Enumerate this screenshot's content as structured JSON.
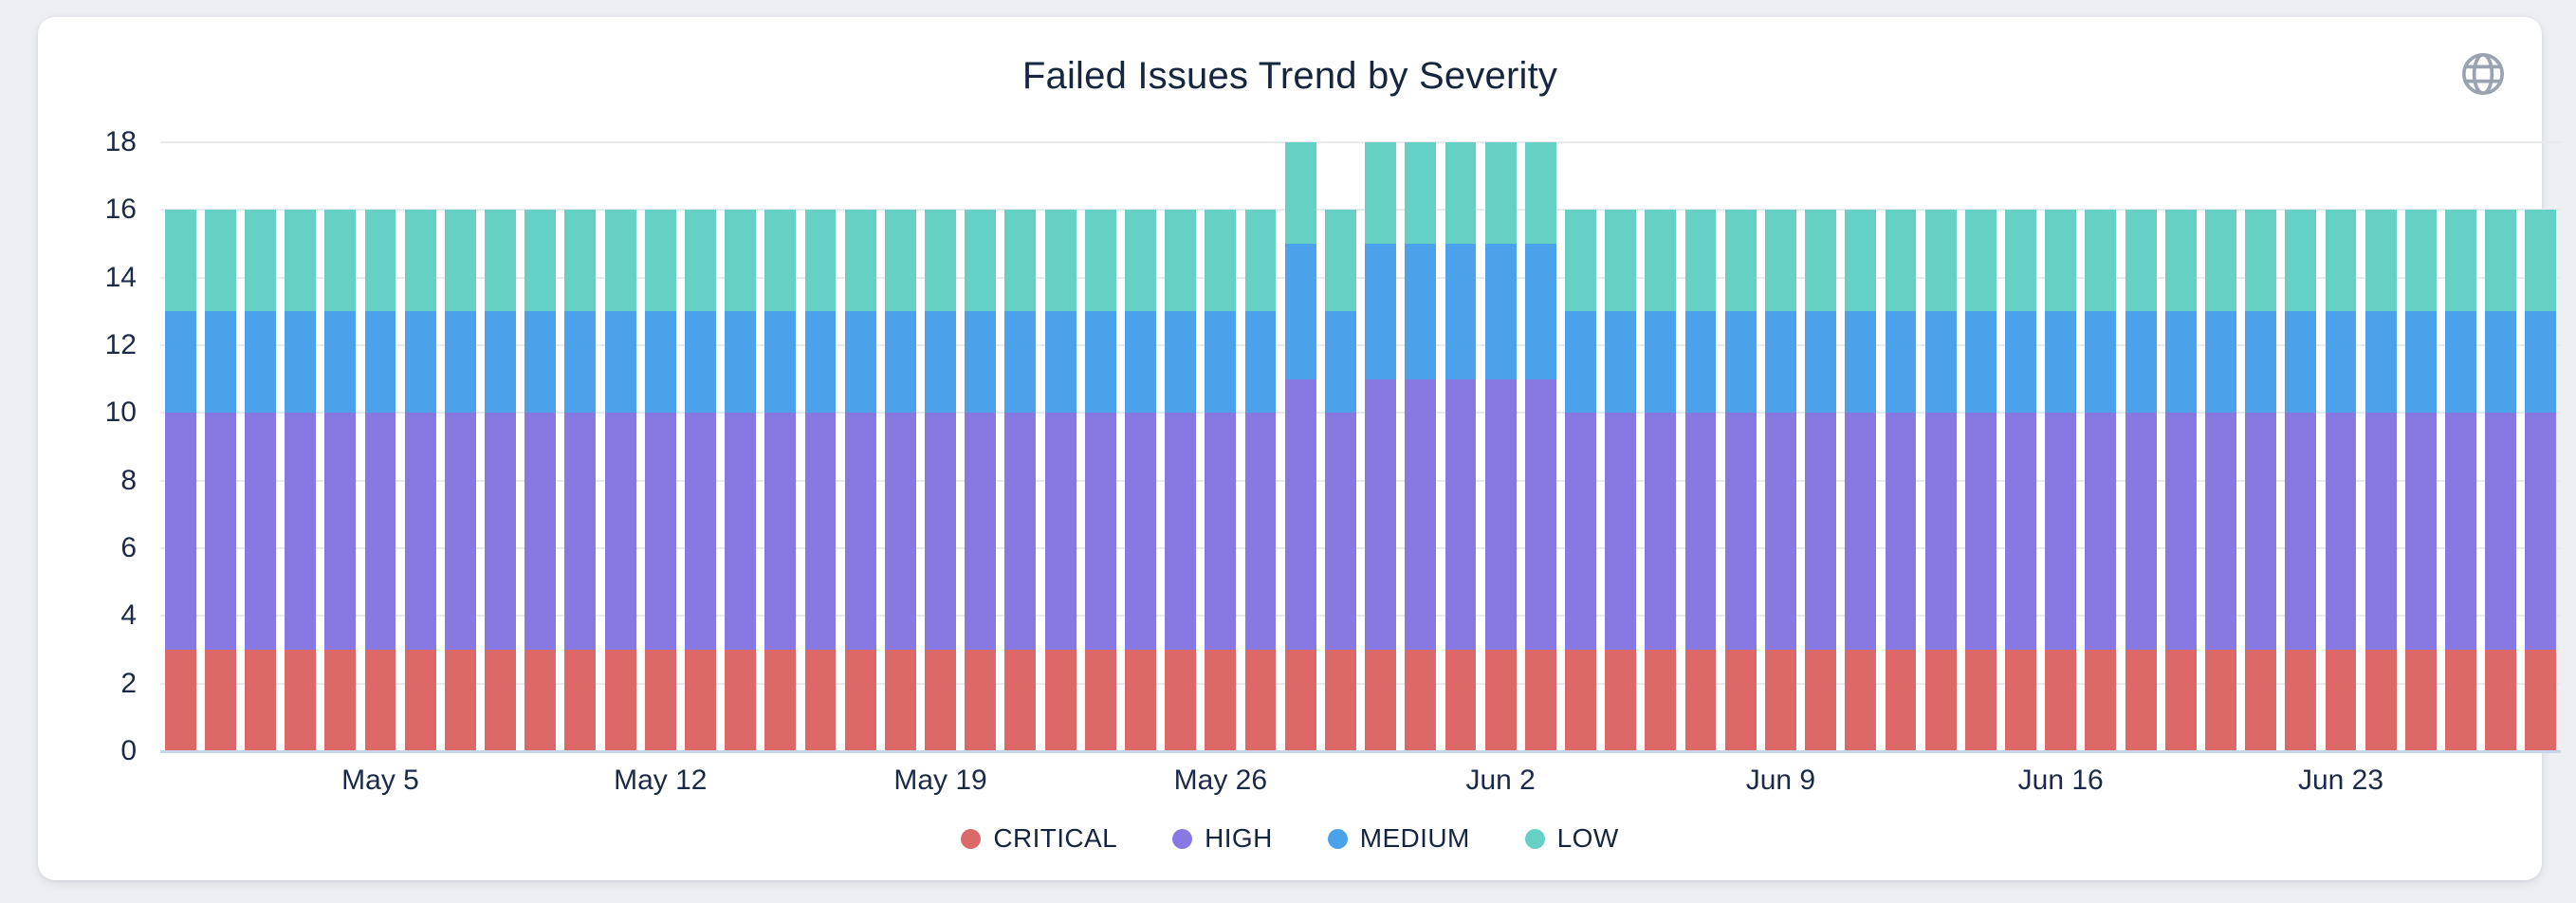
{
  "card": {
    "background": "#FFFFFF"
  },
  "header": {
    "icon": "globe"
  },
  "colors": {
    "page_background": "#EDEFF3",
    "grid_line": "#E9EAEE",
    "axis_line": "#C9D4E8",
    "axis_text": "#1B2A47",
    "title_text": "#17263F",
    "globe_icon": "#9AA3AF"
  },
  "chart_data": {
    "type": "bar",
    "stacked": true,
    "title": "Failed Issues Trend by Severity",
    "xlabel": "",
    "ylabel": "",
    "ylim": [
      0,
      18
    ],
    "y_ticks": [
      0,
      2,
      4,
      6,
      8,
      10,
      12,
      14,
      16,
      18
    ],
    "grid": true,
    "legend_position": "bottom",
    "categories": [
      "Apr 30",
      "May 1",
      "May 2",
      "May 3",
      "May 4",
      "May 5",
      "May 6",
      "May 7",
      "May 8",
      "May 9",
      "May 10",
      "May 11",
      "May 12",
      "May 13",
      "May 14",
      "May 15",
      "May 16",
      "May 17",
      "May 18",
      "May 19",
      "May 20",
      "May 21",
      "May 22",
      "May 23",
      "May 24",
      "May 25",
      "May 26",
      "May 27",
      "May 28",
      "May 29",
      "May 30",
      "May 31",
      "Jun 1",
      "Jun 2",
      "Jun 3",
      "Jun 4",
      "Jun 5",
      "Jun 6",
      "Jun 7",
      "Jun 8",
      "Jun 9",
      "Jun 10",
      "Jun 11",
      "Jun 12",
      "Jun 13",
      "Jun 14",
      "Jun 15",
      "Jun 16",
      "Jun 17",
      "Jun 18",
      "Jun 19",
      "Jun 20",
      "Jun 21",
      "Jun 22",
      "Jun 23",
      "Jun 24",
      "Jun 25",
      "Jun 26",
      "Jun 27",
      "Jun 28"
    ],
    "x_tick_labels": [
      {
        "index": 5,
        "label": "May 5"
      },
      {
        "index": 12,
        "label": "May 12"
      },
      {
        "index": 19,
        "label": "May 19"
      },
      {
        "index": 26,
        "label": "May 26"
      },
      {
        "index": 33,
        "label": "Jun 2"
      },
      {
        "index": 40,
        "label": "Jun 9"
      },
      {
        "index": 47,
        "label": "Jun 16"
      },
      {
        "index": 54,
        "label": "Jun 23"
      }
    ],
    "series": [
      {
        "name": "CRITICAL",
        "color": "#DC6868",
        "values": [
          3,
          3,
          3,
          3,
          3,
          3,
          3,
          3,
          3,
          3,
          3,
          3,
          3,
          3,
          3,
          3,
          3,
          3,
          3,
          3,
          3,
          3,
          3,
          3,
          3,
          3,
          3,
          3,
          3,
          3,
          3,
          3,
          3,
          3,
          3,
          3,
          3,
          3,
          3,
          3,
          3,
          3,
          3,
          3,
          3,
          3,
          3,
          3,
          3,
          3,
          3,
          3,
          3,
          3,
          3,
          3,
          3,
          3,
          3,
          3
        ]
      },
      {
        "name": "HIGH",
        "color": "#8779E1",
        "values": [
          7,
          7,
          7,
          7,
          7,
          7,
          7,
          7,
          7,
          7,
          7,
          7,
          7,
          7,
          7,
          7,
          7,
          7,
          7,
          7,
          7,
          7,
          7,
          7,
          7,
          7,
          7,
          7,
          8,
          7,
          8,
          8,
          8,
          8,
          8,
          7,
          7,
          7,
          7,
          7,
          7,
          7,
          7,
          7,
          7,
          7,
          7,
          7,
          7,
          7,
          7,
          7,
          7,
          7,
          7,
          7,
          7,
          7,
          7,
          7
        ]
      },
      {
        "name": "MEDIUM",
        "color": "#4BA2EB",
        "values": [
          3,
          3,
          3,
          3,
          3,
          3,
          3,
          3,
          3,
          3,
          3,
          3,
          3,
          3,
          3,
          3,
          3,
          3,
          3,
          3,
          3,
          3,
          3,
          3,
          3,
          3,
          3,
          3,
          4,
          3,
          4,
          4,
          4,
          4,
          4,
          3,
          3,
          3,
          3,
          3,
          3,
          3,
          3,
          3,
          3,
          3,
          3,
          3,
          3,
          3,
          3,
          3,
          3,
          3,
          3,
          3,
          3,
          3,
          3,
          3
        ]
      },
      {
        "name": "LOW",
        "color": "#65D1C5",
        "values": [
          3,
          3,
          3,
          3,
          3,
          3,
          3,
          3,
          3,
          3,
          3,
          3,
          3,
          3,
          3,
          3,
          3,
          3,
          3,
          3,
          3,
          3,
          3,
          3,
          3,
          3,
          3,
          3,
          3,
          3,
          3,
          3,
          3,
          3,
          3,
          3,
          3,
          3,
          3,
          3,
          3,
          3,
          3,
          3,
          3,
          3,
          3,
          3,
          3,
          3,
          3,
          3,
          3,
          3,
          3,
          3,
          3,
          3,
          3,
          3
        ]
      }
    ]
  }
}
